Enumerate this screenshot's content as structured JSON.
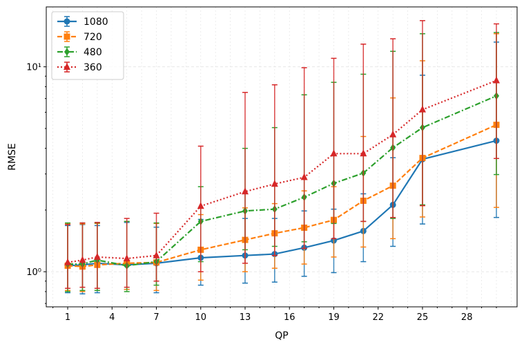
{
  "chart_data": {
    "type": "line",
    "title": "",
    "xlabel": "QP",
    "ylabel": "RMSE",
    "yscale": "log",
    "xlim": [
      -0.45,
      31.4
    ],
    "ylim": [
      0.674,
      19.6
    ],
    "xticks": [
      1,
      4,
      7,
      10,
      13,
      16,
      19,
      22,
      25,
      28
    ],
    "yticks": [
      {
        "value": 1,
        "label": "10⁰"
      },
      {
        "value": 10,
        "label": "10¹"
      }
    ],
    "grid": true,
    "legend_position": "top-left",
    "x": [
      1,
      2,
      3,
      5,
      7,
      10,
      13,
      15,
      17,
      19,
      21,
      23,
      25,
      30
    ],
    "series": [
      {
        "name": "1080",
        "color": "#1f77b4",
        "marker": "circle",
        "linestyle": "solid",
        "values": [
          1.07,
          1.08,
          1.1,
          1.08,
          1.1,
          1.17,
          1.2,
          1.22,
          1.31,
          1.42,
          1.58,
          2.12,
          3.54,
          4.36
        ],
        "err_low": [
          0.79,
          0.78,
          0.79,
          0.82,
          0.79,
          0.86,
          0.88,
          0.89,
          0.95,
          0.99,
          1.12,
          1.33,
          1.71,
          1.84
        ],
        "err_high": [
          1.68,
          1.7,
          1.68,
          1.74,
          1.65,
          1.8,
          1.82,
          1.82,
          1.98,
          2.02,
          2.4,
          3.6,
          9.1,
          13.2
        ]
      },
      {
        "name": "720",
        "color": "#ff7f0e",
        "marker": "square",
        "linestyle": "dashed",
        "values": [
          1.07,
          1.06,
          1.08,
          1.1,
          1.11,
          1.28,
          1.43,
          1.54,
          1.64,
          1.79,
          2.22,
          2.63,
          3.59,
          5.21
        ],
        "err_low": [
          0.81,
          0.8,
          0.81,
          0.82,
          0.81,
          0.91,
          1.0,
          1.04,
          1.09,
          1.18,
          1.32,
          1.45,
          1.85,
          2.06
        ],
        "err_high": [
          1.72,
          1.71,
          1.72,
          1.76,
          1.72,
          1.9,
          2.05,
          2.15,
          2.48,
          2.6,
          4.57,
          7.05,
          10.7,
          14.5
        ]
      },
      {
        "name": "480",
        "color": "#2ca02c",
        "marker": "diamond",
        "linestyle": "dashdot",
        "values": [
          1.09,
          1.09,
          1.14,
          1.07,
          1.12,
          1.76,
          1.98,
          2.02,
          2.31,
          2.7,
          3.03,
          4.03,
          5.05,
          7.21
        ],
        "err_low": [
          0.8,
          0.81,
          0.81,
          0.8,
          0.86,
          1.12,
          1.28,
          1.33,
          1.4,
          1.72,
          1.76,
          1.82,
          2.12,
          2.98
        ],
        "err_high": [
          1.73,
          1.73,
          1.73,
          1.76,
          1.73,
          2.6,
          4.0,
          5.05,
          7.3,
          8.4,
          9.2,
          11.9,
          14.5,
          14.7
        ]
      },
      {
        "name": "360",
        "color": "#d62728",
        "marker": "triangle",
        "linestyle": "dotted",
        "values": [
          1.11,
          1.14,
          1.18,
          1.16,
          1.2,
          2.09,
          2.46,
          2.68,
          2.89,
          3.77,
          3.77,
          4.67,
          6.18,
          8.57
        ],
        "err_low": [
          0.83,
          0.84,
          0.83,
          0.84,
          0.9,
          1.0,
          1.1,
          1.2,
          1.3,
          1.45,
          1.76,
          1.84,
          2.1,
          3.57
        ],
        "err_high": [
          1.7,
          1.73,
          1.74,
          1.82,
          1.93,
          4.1,
          7.5,
          8.17,
          9.9,
          11.0,
          12.9,
          13.7,
          16.8,
          16.2
        ]
      }
    ]
  }
}
